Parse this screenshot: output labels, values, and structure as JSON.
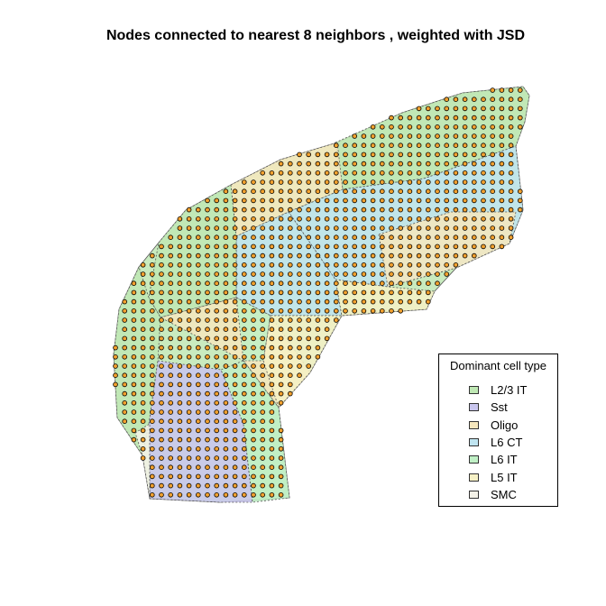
{
  "chart_data": {
    "type": "scatter",
    "title": "Nodes connected to nearest 8 neighbors , weighted with JSD",
    "grid": false,
    "legend": {
      "title": "Dominant cell type",
      "placement": "bottom-right",
      "entries": [
        {
          "label": "L2/3 IT",
          "color": "#bfe8b4"
        },
        {
          "label": "Sst",
          "color": "#c9c6ee"
        },
        {
          "label": "Oligo",
          "color": "#f6e7bd"
        },
        {
          "label": "L6 CT",
          "color": "#bfe4f0"
        },
        {
          "label": "L6 IT",
          "color": "#c0f0c6"
        },
        {
          "label": "L5 IT",
          "color": "#f6f1c6"
        },
        {
          "label": "SMC",
          "color": "#f4f2e8"
        }
      ]
    },
    "series": [
      {
        "marker_fill": "#f2a12f",
        "marker_edge": "#000000"
      }
    ]
  }
}
